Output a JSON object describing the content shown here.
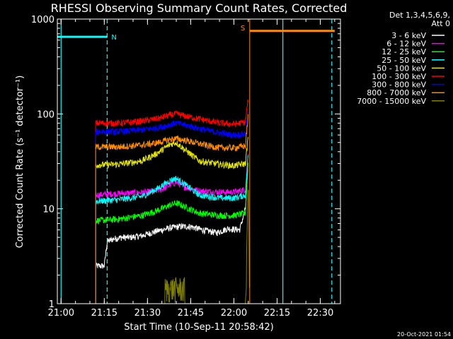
{
  "chart_data": {
    "type": "line",
    "title": "RHESSI Observing Summary Count Rates, Corrected",
    "xlabel": "Start Time (10-Sep-11 20:58:42)",
    "ylabel": "Corrected Count Rate (s⁻¹ detector⁻¹)",
    "y_scale": "log",
    "xlim": [
      "20:58:42",
      "22:37:00"
    ],
    "ylim": [
      1,
      1000
    ],
    "x_ticks": [
      "21:00",
      "21:15",
      "21:30",
      "21:45",
      "22:00",
      "22:15",
      "22:30"
    ],
    "y_ticks": [
      "1",
      "10",
      "100",
      "1000"
    ],
    "legend_header": [
      "Det 1,3,4,5,6,9,",
      "Att 0"
    ],
    "legend_position": "right",
    "timestamp": "20-Oct-2021 01:54",
    "annotations": [
      {
        "label": "N",
        "from": "20:58:42",
        "to": "21:16:00",
        "level": 650,
        "color": "#00ffff",
        "marker_time": "21:16:00"
      },
      {
        "label": "S",
        "from": "22:05:30",
        "to": "22:35:00",
        "level": 750,
        "color": "#ff8c00"
      }
    ],
    "vertical_lines": [
      {
        "time": "21:00:00",
        "color": "#00ffff",
        "style": "solid"
      },
      {
        "time": "21:16:00",
        "color": "#00ffff",
        "style": "dashed"
      },
      {
        "time": "22:17:00",
        "color": "#00ffff",
        "style": "solid"
      },
      {
        "time": "22:34:00",
        "color": "#00ffff",
        "style": "dashed"
      }
    ],
    "series": [
      {
        "name": "3 - 6 keV",
        "color": "#ffffff",
        "time": [
          "21:12",
          "21:15",
          "21:16",
          "21:18",
          "21:21",
          "21:24",
          "21:28",
          "21:33",
          "21:38",
          "21:41",
          "21:45",
          "21:49",
          "21:54",
          "21:58",
          "22:02",
          "22:04",
          "22:05"
        ],
        "values": [
          2.5,
          2.5,
          4.5,
          4.8,
          5.0,
          5.0,
          5.2,
          5.8,
          6.3,
          6.5,
          6.5,
          6.0,
          5.6,
          6.2,
          6.0,
          10,
          30
        ]
      },
      {
        "name": "6 - 12 keV",
        "color": "#ff00ff",
        "time": [
          "21:12",
          "21:20",
          "21:30",
          "21:35",
          "21:38",
          "21:40",
          "21:43",
          "21:48",
          "21:55",
          "22:00",
          "22:04",
          "22:05"
        ],
        "values": [
          14,
          14.5,
          15,
          16,
          18,
          19,
          17,
          15.5,
          15,
          15,
          16,
          40
        ]
      },
      {
        "name": "12 - 25 keV",
        "color": "#00ff00",
        "time": [
          "21:12",
          "21:20",
          "21:28",
          "21:33",
          "21:38",
          "21:40",
          "21:43",
          "21:48",
          "21:55",
          "22:00",
          "22:04",
          "22:05"
        ],
        "values": [
          7.5,
          7.8,
          8.5,
          9.5,
          11,
          11.5,
          10.5,
          9,
          8.5,
          8.5,
          9,
          35
        ]
      },
      {
        "name": "25 - 50 keV",
        "color": "#00ffff",
        "time": [
          "21:12",
          "21:20",
          "21:28",
          "21:33",
          "21:38",
          "21:40",
          "21:43",
          "21:48",
          "21:55",
          "22:00",
          "22:04",
          "22:05"
        ],
        "values": [
          12,
          12.5,
          13.5,
          16,
          20,
          21,
          18,
          14,
          13,
          13,
          14,
          40
        ]
      },
      {
        "name": "50 - 100 keV",
        "color": "#e6e600",
        "time": [
          "21:12",
          "21:20",
          "21:28",
          "21:33",
          "21:38",
          "21:40",
          "21:43",
          "21:48",
          "21:55",
          "22:00",
          "22:04",
          "22:05"
        ],
        "values": [
          29,
          29.5,
          32,
          38,
          48,
          50,
          42,
          32,
          29.5,
          28.5,
          30,
          60
        ]
      },
      {
        "name": "100 - 300 keV",
        "color": "#ff0000",
        "time": [
          "21:12",
          "21:20",
          "21:28",
          "21:34",
          "21:38",
          "21:40",
          "21:44",
          "21:50",
          "21:55",
          "22:00",
          "22:04",
          "22:05"
        ],
        "values": [
          80,
          80,
          84,
          90,
          98,
          100,
          94,
          86,
          80,
          78,
          82,
          150
        ]
      },
      {
        "name": "300 - 800 keV",
        "color": "#0000ff",
        "time": [
          "21:12",
          "21:20",
          "21:28",
          "21:34",
          "21:38",
          "21:40",
          "21:44",
          "21:50",
          "21:55",
          "22:00",
          "22:04",
          "22:05"
        ],
        "values": [
          65,
          65,
          68,
          72,
          78,
          80,
          75,
          68,
          63,
          60,
          62,
          110
        ]
      },
      {
        "name": "800 - 7000 keV",
        "color": "#ff8c00",
        "time": [
          "21:12",
          "21:20",
          "21:28",
          "21:34",
          "21:38",
          "21:40",
          "21:44",
          "21:50",
          "21:55",
          "22:00",
          "22:04",
          "22:05"
        ],
        "values": [
          45,
          45,
          47,
          50,
          54,
          55,
          52,
          47,
          44,
          44,
          46,
          100
        ]
      },
      {
        "name": "7000 - 15000 keV",
        "color": "#808000",
        "time": [
          "21:12",
          "21:36",
          "21:37",
          "21:42",
          "21:43",
          "22:04",
          "22:05",
          "22:05:30"
        ],
        "values": [
          1,
          1,
          1.9,
          1.9,
          1,
          1,
          20,
          1
        ]
      }
    ]
  }
}
